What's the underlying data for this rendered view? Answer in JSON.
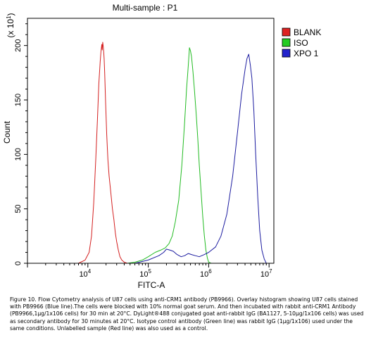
{
  "chart_data": {
    "type": "line",
    "title": "Multi-sample : P1",
    "xlabel": "FITC-A",
    "ylabel": "Count",
    "y_multiplier_label": "(x 10",
    "y_multiplier_exp": "1",
    "x_scale": "log",
    "xlim": [
      1000,
      12000000
    ],
    "ylim": [
      0,
      225
    ],
    "x_ticks": [
      {
        "value": 10000,
        "base": "10",
        "exp": "4"
      },
      {
        "value": 100000,
        "base": "10",
        "exp": "5"
      },
      {
        "value": 1000000,
        "base": "10",
        "exp": "6"
      },
      {
        "value": 10000000,
        "base": "10",
        "exp": "7"
      }
    ],
    "y_ticks": [
      0,
      50,
      100,
      150,
      200
    ],
    "grid": false,
    "legend_position": "right",
    "series": [
      {
        "name": "BLANK",
        "color": "#d42020",
        "fill": "#dd2222",
        "x": [
          7000,
          9000,
          10500,
          11500,
          12500,
          13500,
          14500,
          15200,
          16000,
          16500,
          17000,
          17300,
          17600,
          18000,
          18300,
          18600,
          19000,
          19600,
          20500,
          21500,
          22500,
          24000,
          25500,
          27000,
          28500,
          30000,
          32000,
          34000,
          36500,
          40000,
          45000
        ],
        "y": [
          0,
          3,
          10,
          25,
          55,
          95,
          135,
          165,
          185,
          195,
          201,
          196,
          203,
          199,
          194,
          188,
          175,
          150,
          118,
          95,
          80,
          65,
          50,
          40,
          28,
          20,
          12,
          6,
          3,
          1,
          0
        ]
      },
      {
        "name": "ISO",
        "color": "#22bb22",
        "fill": "#22cc22",
        "x": [
          45000,
          60000,
          80000,
          100000,
          130000,
          160000,
          190000,
          220000,
          250000,
          280000,
          320000,
          360000,
          400000,
          430000,
          460000,
          480000,
          500000,
          520000,
          550000,
          580000,
          620000,
          660000,
          700000,
          750000,
          800000,
          850000,
          900000,
          950000,
          1000000,
          1100000
        ],
        "y": [
          0,
          1,
          3,
          6,
          10,
          12,
          14,
          18,
          25,
          38,
          58,
          90,
          130,
          160,
          182,
          198,
          195,
          190,
          176,
          160,
          138,
          115,
          90,
          65,
          42,
          25,
          12,
          5,
          1,
          0
        ]
      },
      {
        "name": "XPO 1",
        "color": "#1c1ca0",
        "fill": "#2222cc",
        "x": [
          60000,
          100000,
          150000,
          180000,
          200000,
          230000,
          260000,
          300000,
          350000,
          400000,
          460000,
          520000,
          600000,
          700000,
          850000,
          1000000,
          1300000,
          1600000,
          2000000,
          2500000,
          3000000,
          3500000,
          4000000,
          4300000,
          4600000,
          4900000,
          5200000,
          5600000,
          6000000,
          6500000,
          7000000,
          7600000,
          8300000,
          9000000
        ],
        "y": [
          0,
          3,
          7,
          10,
          13,
          12,
          11,
          8,
          6,
          7,
          9,
          8,
          7,
          6,
          8,
          10,
          15,
          25,
          45,
          80,
          120,
          155,
          178,
          188,
          192,
          182,
          170,
          140,
          100,
          60,
          30,
          12,
          4,
          0
        ]
      }
    ]
  },
  "caption": "Figure 10. Flow Cytometry analysis of U87 cells using anti-CRM1 antibody (PB9966).  Overlay histogram showing U87 cells stained with PB9966 (Blue line).The cells were blocked with 10% normal goat serum. And then incubated with rabbit anti-CRM1 Antibody (PB9966,1μg/1x106 cells) for 30 min at 20°C. DyLight®488 conjugated goat anti-rabbit IgG (BA1127, 5-10μg/1x106 cells) was used as secondary antibody for 30 minutes at 20°C. Isotype control antibody (Green line) was rabbit IgG (1μg/1x106) used under the same conditions. Unlabelled sample (Red line) was also used as a control."
}
